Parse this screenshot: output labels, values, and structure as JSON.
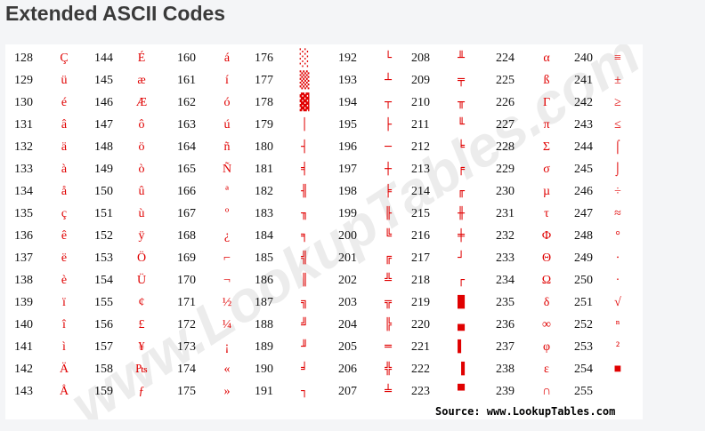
{
  "title": "Extended ASCII Codes",
  "watermark": "www.LookupTables.com",
  "source": "Source:  www.LookupTables.com",
  "accent_color": "#e00000",
  "columns": [
    [
      {
        "code": "128",
        "char": "Ç"
      },
      {
        "code": "129",
        "char": "ü"
      },
      {
        "code": "130",
        "char": "é"
      },
      {
        "code": "131",
        "char": "â"
      },
      {
        "code": "132",
        "char": "ä"
      },
      {
        "code": "133",
        "char": "à"
      },
      {
        "code": "134",
        "char": "å"
      },
      {
        "code": "135",
        "char": "ç"
      },
      {
        "code": "136",
        "char": "ê"
      },
      {
        "code": "137",
        "char": "ë"
      },
      {
        "code": "138",
        "char": "è"
      },
      {
        "code": "139",
        "char": "ï"
      },
      {
        "code": "140",
        "char": "î"
      },
      {
        "code": "141",
        "char": "ì"
      },
      {
        "code": "142",
        "char": "Ä"
      },
      {
        "code": "143",
        "char": "Å"
      }
    ],
    [
      {
        "code": "144",
        "char": "É"
      },
      {
        "code": "145",
        "char": "æ"
      },
      {
        "code": "146",
        "char": "Æ"
      },
      {
        "code": "147",
        "char": "ô"
      },
      {
        "code": "148",
        "char": "ö"
      },
      {
        "code": "149",
        "char": "ò"
      },
      {
        "code": "150",
        "char": "û"
      },
      {
        "code": "151",
        "char": "ù"
      },
      {
        "code": "152",
        "char": "ÿ"
      },
      {
        "code": "153",
        "char": "Ö"
      },
      {
        "code": "154",
        "char": "Ü"
      },
      {
        "code": "155",
        "char": "¢"
      },
      {
        "code": "156",
        "char": "£"
      },
      {
        "code": "157",
        "char": "¥"
      },
      {
        "code": "158",
        "char": "₧"
      },
      {
        "code": "159",
        "char": "ƒ"
      }
    ],
    [
      {
        "code": "160",
        "char": "á"
      },
      {
        "code": "161",
        "char": "í"
      },
      {
        "code": "162",
        "char": "ó"
      },
      {
        "code": "163",
        "char": "ú"
      },
      {
        "code": "164",
        "char": "ñ"
      },
      {
        "code": "165",
        "char": "Ñ"
      },
      {
        "code": "166",
        "char": "ª"
      },
      {
        "code": "167",
        "char": "º"
      },
      {
        "code": "168",
        "char": "¿"
      },
      {
        "code": "169",
        "char": "⌐"
      },
      {
        "code": "170",
        "char": "¬"
      },
      {
        "code": "171",
        "char": "½"
      },
      {
        "code": "172",
        "char": "¼"
      },
      {
        "code": "173",
        "char": "¡"
      },
      {
        "code": "174",
        "char": "«"
      },
      {
        "code": "175",
        "char": "»"
      }
    ],
    [
      {
        "code": "176",
        "char": "░"
      },
      {
        "code": "177",
        "char": "▒"
      },
      {
        "code": "178",
        "char": "▓"
      },
      {
        "code": "179",
        "char": "│"
      },
      {
        "code": "180",
        "char": "┤"
      },
      {
        "code": "181",
        "char": "╡"
      },
      {
        "code": "182",
        "char": "╢"
      },
      {
        "code": "183",
        "char": "╖"
      },
      {
        "code": "184",
        "char": "╕"
      },
      {
        "code": "185",
        "char": "╣"
      },
      {
        "code": "186",
        "char": "║"
      },
      {
        "code": "187",
        "char": "╗"
      },
      {
        "code": "188",
        "char": "╝"
      },
      {
        "code": "189",
        "char": "╜"
      },
      {
        "code": "190",
        "char": "╛"
      },
      {
        "code": "191",
        "char": "┐"
      }
    ],
    [
      {
        "code": "192",
        "char": "└"
      },
      {
        "code": "193",
        "char": "┴"
      },
      {
        "code": "194",
        "char": "┬"
      },
      {
        "code": "195",
        "char": "├"
      },
      {
        "code": "196",
        "char": "─"
      },
      {
        "code": "197",
        "char": "┼"
      },
      {
        "code": "198",
        "char": "╞"
      },
      {
        "code": "199",
        "char": "╟"
      },
      {
        "code": "200",
        "char": "╚"
      },
      {
        "code": "201",
        "char": "╔"
      },
      {
        "code": "202",
        "char": "╩"
      },
      {
        "code": "203",
        "char": "╦"
      },
      {
        "code": "204",
        "char": "╠"
      },
      {
        "code": "205",
        "char": "═"
      },
      {
        "code": "206",
        "char": "╬"
      },
      {
        "code": "207",
        "char": "╧"
      }
    ],
    [
      {
        "code": "208",
        "char": "╨"
      },
      {
        "code": "209",
        "char": "╤"
      },
      {
        "code": "210",
        "char": "╥"
      },
      {
        "code": "211",
        "char": "╙"
      },
      {
        "code": "212",
        "char": "╘"
      },
      {
        "code": "213",
        "char": "╒"
      },
      {
        "code": "214",
        "char": "╓"
      },
      {
        "code": "215",
        "char": "╫"
      },
      {
        "code": "216",
        "char": "╪"
      },
      {
        "code": "217",
        "char": "┘"
      },
      {
        "code": "218",
        "char": "┌"
      },
      {
        "code": "219",
        "char": "█"
      },
      {
        "code": "220",
        "char": "▄"
      },
      {
        "code": "221",
        "char": "▌"
      },
      {
        "code": "222",
        "char": "▐"
      },
      {
        "code": "223",
        "char": "▀"
      }
    ],
    [
      {
        "code": "224",
        "char": "α"
      },
      {
        "code": "225",
        "char": "ß"
      },
      {
        "code": "226",
        "char": "Γ"
      },
      {
        "code": "227",
        "char": "π"
      },
      {
        "code": "228",
        "char": "Σ"
      },
      {
        "code": "229",
        "char": "σ"
      },
      {
        "code": "230",
        "char": "µ"
      },
      {
        "code": "231",
        "char": "τ"
      },
      {
        "code": "232",
        "char": "Φ"
      },
      {
        "code": "233",
        "char": "Θ"
      },
      {
        "code": "234",
        "char": "Ω"
      },
      {
        "code": "235",
        "char": "δ"
      },
      {
        "code": "236",
        "char": "∞"
      },
      {
        "code": "237",
        "char": "φ"
      },
      {
        "code": "238",
        "char": "ε"
      },
      {
        "code": "239",
        "char": "∩"
      }
    ],
    [
      {
        "code": "240",
        "char": "≡"
      },
      {
        "code": "241",
        "char": "±"
      },
      {
        "code": "242",
        "char": "≥"
      },
      {
        "code": "243",
        "char": "≤"
      },
      {
        "code": "244",
        "char": "⌠"
      },
      {
        "code": "245",
        "char": "⌡"
      },
      {
        "code": "246",
        "char": "÷"
      },
      {
        "code": "247",
        "char": "≈"
      },
      {
        "code": "248",
        "char": "°"
      },
      {
        "code": "249",
        "char": "∙"
      },
      {
        "code": "250",
        "char": "·"
      },
      {
        "code": "251",
        "char": "√"
      },
      {
        "code": "252",
        "char": "ⁿ"
      },
      {
        "code": "253",
        "char": "²"
      },
      {
        "code": "254",
        "char": "■"
      },
      {
        "code": "255",
        "char": ""
      }
    ]
  ]
}
